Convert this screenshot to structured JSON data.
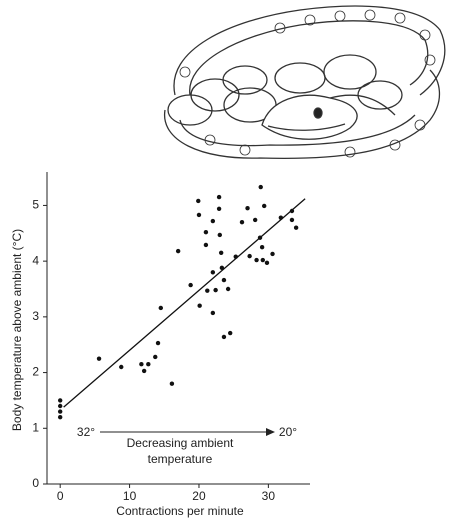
{
  "chart_data": {
    "type": "scatter",
    "xlabel": "Contractions per minute",
    "ylabel": "Body temperature above ambient (°C)",
    "x": [
      0,
      0,
      0,
      0,
      5.6,
      8.8,
      11.7,
      12.1,
      12.7,
      13.7,
      14.1,
      14.5,
      16.1,
      17,
      18.8,
      19.9,
      20.1,
      20,
      21,
      21,
      21.2,
      22,
      22,
      22,
      22.4,
      22.9,
      22.9,
      23,
      23.2,
      23.3,
      23.6,
      23.6,
      24.2,
      24.5,
      25.3,
      26.2,
      27,
      27.3,
      28.3,
      28.1,
      28.8,
      28.9,
      29.1,
      29.4,
      29.2,
      29.8,
      30.6,
      31.8,
      33.4,
      33.4,
      34
    ],
    "values": [
      1.5,
      1.4,
      1.3,
      1.2,
      2.25,
      2.1,
      2.15,
      2.03,
      2.15,
      2.28,
      2.53,
      3.16,
      1.8,
      4.18,
      3.57,
      5.08,
      3.2,
      4.83,
      4.52,
      4.29,
      3.47,
      4.72,
      3.8,
      3.07,
      3.48,
      5.15,
      4.94,
      4.47,
      4.15,
      3.88,
      3.66,
      2.64,
      3.5,
      2.71,
      4.08,
      4.7,
      4.95,
      4.09,
      4.02,
      4.74,
      4.42,
      5.33,
      4.25,
      4.99,
      4.02,
      3.97,
      4.13,
      4.78,
      4.74,
      4.9,
      4.6
    ],
    "color": "#111111",
    "fit_line": {
      "x": [
        0.5,
        35.3
      ],
      "values": [
        1.38,
        5.12
      ]
    },
    "xlim": [
      -1.9,
      36
    ],
    "ylim": [
      0,
      5.6
    ],
    "xticks": [
      0,
      10,
      20,
      30
    ],
    "yticks": [
      0,
      1,
      2,
      3,
      4,
      5
    ],
    "annotations": [
      "32°",
      "20°",
      "Decreasing ambient",
      "temperature"
    ]
  }
}
